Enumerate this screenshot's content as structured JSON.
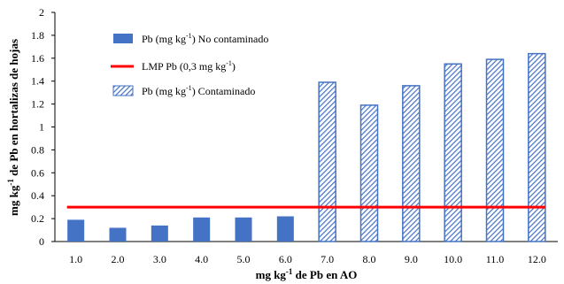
{
  "chart_data": {
    "type": "bar",
    "categories": [
      "1.0",
      "2.0",
      "3.0",
      "4.0",
      "5.0",
      "6.0",
      "7.0",
      "8.0",
      "9.0",
      "10.0",
      "11.0",
      "12.0"
    ],
    "series": [
      {
        "name": "Pb (mg kg-1) No contaminado",
        "name_parts": {
          "pre": "Pb (mg kg",
          "sup": "-1",
          "post": ") No contaminado"
        },
        "color": "#4472C4",
        "pattern": "solid",
        "values": [
          0.19,
          0.12,
          0.14,
          0.21,
          0.21,
          0.22,
          null,
          null,
          null,
          null,
          null,
          null
        ]
      },
      {
        "name": "Pb (mg kg-1) Contaminado",
        "name_parts": {
          "pre": "Pb (mg kg",
          "sup": "-1",
          "post": ") Contaminado"
        },
        "color": "#4472C4",
        "pattern": "hatched",
        "values": [
          null,
          null,
          null,
          null,
          null,
          null,
          1.39,
          1.19,
          1.36,
          1.55,
          1.59,
          1.64
        ]
      }
    ],
    "reference_line": {
      "name": "LMP Pb (0,3 mg kg-1)",
      "name_parts": {
        "pre": "LMP Pb (0,3 mg kg",
        "sup": "-1",
        "post": ")"
      },
      "value": 0.3,
      "color": "#FF0000"
    },
    "ylim": [
      0,
      2
    ],
    "yticks": [
      "0",
      "0.2",
      "0.4",
      "0.6",
      "0.8",
      "1",
      "1.2",
      "1.4",
      "1.6",
      "1.8",
      "2"
    ],
    "xlabel": "mg kg-1 de Pb en AO",
    "xlabel_parts": {
      "pre": "mg kg",
      "sup": "-1",
      "post": " de Pb en AO"
    },
    "ylabel": "mg kg-1 de Pb en hortalizas de hojas",
    "ylabel_parts": {
      "pre": "mg kg",
      "sup": "-1",
      "post": " de Pb en hortalizas de hojas"
    },
    "legend_position": "top-left",
    "grid": false
  }
}
